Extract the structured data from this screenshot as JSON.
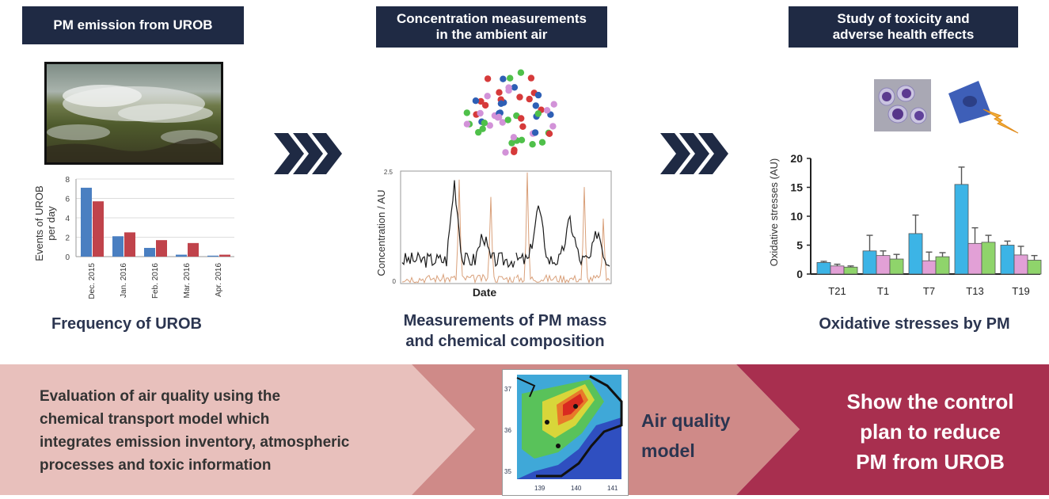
{
  "panels": {
    "emission": {
      "header": "PM emission from UROB",
      "caption": "Frequency of UROB"
    },
    "measurement": {
      "header_line1": "Concentration measurements",
      "header_line2": "in the ambient air",
      "caption_line1": "Measurements of PM mass",
      "caption_line2": "and chemical composition"
    },
    "toxicity": {
      "header_line1": "Study of toxicity and",
      "header_line2": "adverse health effects",
      "caption": "Oxidative stresses by PM"
    }
  },
  "bottom": {
    "left_lines": [
      "Evaluation of air quality using the",
      "chemical transport model which",
      "integrates emission inventory, atmospheric",
      "processes and toxic information"
    ],
    "middle_lines": [
      "Air quality",
      "model"
    ],
    "right_lines": [
      "Show the control",
      "plan to reduce",
      "PM from UROB"
    ],
    "colors": {
      "left": "#e8c0bc",
      "middle": "#cf8a88",
      "right": "#a82f4f"
    }
  },
  "map": {
    "y_ticks": [
      "37",
      "36",
      "35"
    ],
    "x_ticks": [
      "139",
      "140",
      "141"
    ]
  },
  "chart_data": [
    {
      "type": "bar",
      "ylabel": "Events of UROB per day",
      "ylabel_lines": [
        "Events of UROB",
        "per day"
      ],
      "categories": [
        "Dec. 2015",
        "Jan. 2016",
        "Feb. 2016",
        "Mar. 2016",
        "Apr. 2016"
      ],
      "series": [
        {
          "values": [
            7.1,
            2.1,
            0.9,
            0.2,
            0.1
          ],
          "color": "#4a7fc1"
        },
        {
          "values": [
            5.7,
            2.5,
            1.7,
            1.4,
            0.2
          ],
          "color": "#c0434b"
        }
      ],
      "ylim": [
        0,
        8
      ],
      "yticks": [
        0,
        2,
        4,
        6,
        8
      ],
      "grid": true
    },
    {
      "type": "line",
      "xlabel": "Date",
      "ylabel": "Concentration / AU",
      "ylim": [
        0,
        2.5
      ],
      "yticks": [
        "0",
        "2.5"
      ],
      "series": [
        {
          "color": "#1a1a1a"
        },
        {
          "color": "#d9a07a"
        }
      ]
    },
    {
      "type": "bar",
      "ylabel": "Oxidative stresses (AU)",
      "categories": [
        "T21",
        "T1",
        "T7",
        "T13",
        "T19"
      ],
      "series": [
        {
          "values": [
            2.0,
            4.0,
            7.0,
            15.5,
            5.0
          ],
          "errors": [
            0.2,
            2.7,
            3.2,
            3.0,
            0.7
          ],
          "color": "#3cb4e6"
        },
        {
          "values": [
            1.4,
            3.2,
            2.3,
            5.3,
            3.3
          ],
          "errors": [
            0.3,
            0.8,
            1.5,
            2.7,
            1.5
          ],
          "color": "#e2a0d6"
        },
        {
          "values": [
            1.2,
            2.6,
            3.0,
            5.5,
            2.4
          ],
          "errors": [
            0.2,
            0.8,
            0.7,
            1.2,
            0.8
          ],
          "color": "#8fd46b"
        }
      ],
      "ylim": [
        0,
        20
      ],
      "yticks": [
        0,
        5,
        10,
        15,
        20
      ]
    }
  ]
}
